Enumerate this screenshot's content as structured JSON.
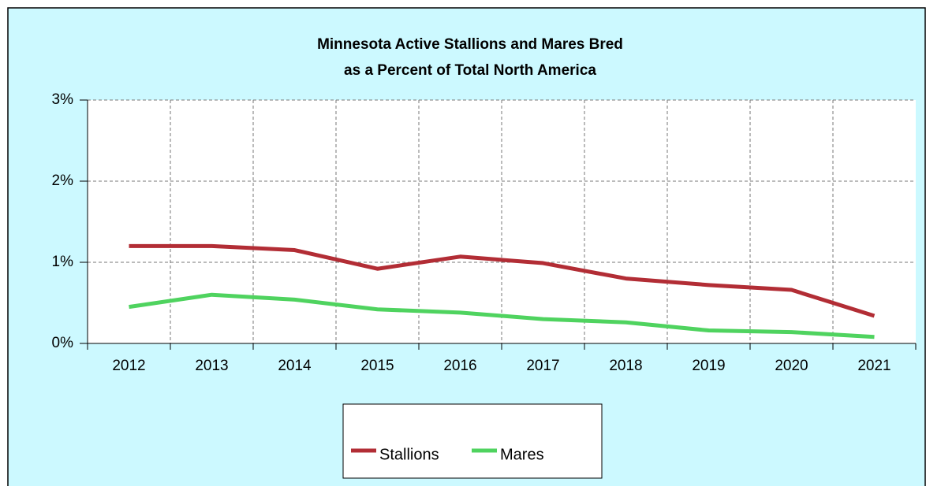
{
  "chart_data": {
    "type": "line",
    "title": [
      "Minnesota Active Stallions and Mares Bred",
      "as a Percent of Total North America"
    ],
    "categories": [
      "2012",
      "2013",
      "2014",
      "2015",
      "2016",
      "2017",
      "2018",
      "2019",
      "2020",
      "2021"
    ],
    "series": [
      {
        "name": "Stallions",
        "color": "#b22d35",
        "values": [
          1.2,
          1.2,
          1.15,
          0.92,
          1.07,
          0.99,
          0.8,
          0.72,
          0.66,
          0.34
        ]
      },
      {
        "name": "Mares",
        "color": "#4fd35f",
        "values": [
          0.45,
          0.6,
          0.54,
          0.42,
          0.38,
          0.3,
          0.26,
          0.16,
          0.14,
          0.08
        ]
      }
    ],
    "ylim": [
      0,
      3
    ],
    "yticks": [
      {
        "value": 0,
        "label": "0%"
      },
      {
        "value": 1,
        "label": "1%"
      },
      {
        "value": 2,
        "label": "2%"
      },
      {
        "value": 3,
        "label": "3%"
      }
    ],
    "grid": true,
    "legend": "bottom"
  }
}
